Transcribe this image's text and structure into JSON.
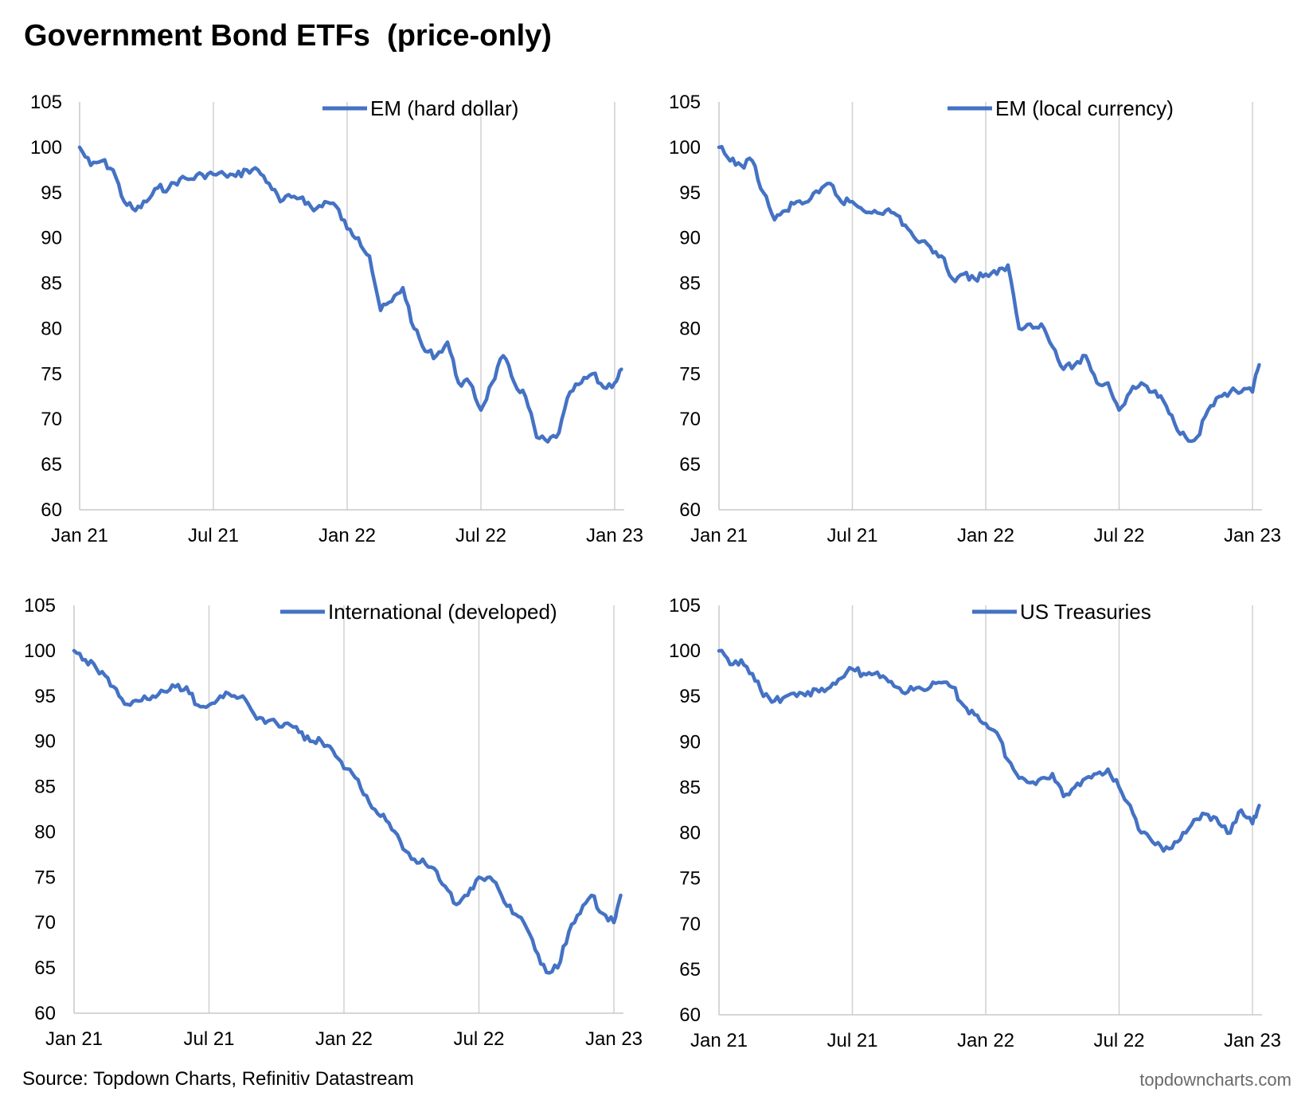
{
  "title": "Government Bond ETFs  (price-only)",
  "source": "Source: Topdown Charts, Refinitiv Datastream",
  "watermark": "topdowncharts.com",
  "colors": {
    "line": "#4472c4",
    "gridline": "#d0d0d0",
    "axis": "#c8c8c8"
  },
  "chart_data": [
    {
      "type": "line",
      "legend": "EM (hard dollar)",
      "legend_position": "top-right",
      "ylim": [
        60,
        105
      ],
      "yticks": [
        60,
        65,
        70,
        75,
        80,
        85,
        90,
        95,
        100,
        105
      ],
      "xticks": [
        "Jan 21",
        "Jul 21",
        "Jan 22",
        "Jul 22",
        "Jan 23"
      ],
      "grid": "vertical",
      "series": [
        {
          "x_months": [
            0,
            0.5,
            1,
            1.5,
            2,
            2.5,
            3,
            3.5,
            4,
            4.5,
            5,
            5.5,
            6,
            6.5,
            7,
            7.5,
            8,
            8.5,
            9,
            9.5,
            10,
            10.5,
            11,
            11.5,
            12,
            12.5,
            13,
            13.5,
            14,
            14.5,
            15,
            15.5,
            16,
            16.5,
            17,
            17.5,
            18,
            18.5,
            19,
            19.5,
            20,
            20.5,
            21,
            21.5,
            22,
            22.5,
            23,
            23.5,
            24,
            24.3
          ],
          "values": [
            100,
            98,
            98.5,
            97.5,
            94,
            93,
            94,
            95.5,
            95.5,
            96.5,
            96.5,
            97,
            97,
            97,
            96.8,
            97.5,
            97.5,
            96,
            94,
            94.5,
            94.5,
            93,
            94,
            93.5,
            91,
            90,
            88,
            82,
            83,
            84.5,
            80,
            77.5,
            77,
            78.5,
            74,
            74,
            71,
            74,
            77,
            74,
            72.5,
            68,
            67.5,
            68.5,
            73,
            74,
            75,
            73.5,
            74,
            75.5
          ]
        }
      ]
    },
    {
      "type": "line",
      "legend": "EM (local currency)",
      "legend_position": "top-right",
      "ylim": [
        60,
        105
      ],
      "yticks": [
        60,
        65,
        70,
        75,
        80,
        85,
        90,
        95,
        100,
        105
      ],
      "xticks": [
        "Jan 21",
        "Jul 21",
        "Jan 22",
        "Jul 22",
        "Jan 23"
      ],
      "grid": "vertical",
      "series": [
        {
          "x_months": [
            0,
            0.5,
            1,
            1.5,
            2,
            2.5,
            3,
            3.5,
            4,
            4.5,
            5,
            5.5,
            6,
            6.5,
            7,
            7.5,
            8,
            8.5,
            9,
            9.5,
            10,
            10.5,
            11,
            11.5,
            12,
            12.5,
            13,
            13.5,
            14,
            14.5,
            15,
            15.5,
            16,
            16.5,
            17,
            17.5,
            18,
            18.5,
            19,
            19.5,
            20,
            20.5,
            21,
            21.5,
            22,
            22.5,
            23,
            23.5,
            24,
            24.3
          ],
          "values": [
            100,
            98.5,
            98,
            98.5,
            95,
            92,
            93,
            94,
            94,
            95,
            96,
            94,
            94,
            93,
            93,
            93,
            92.5,
            91,
            89.5,
            89,
            88,
            85.5,
            86,
            85.5,
            86,
            86,
            87,
            80,
            80.5,
            80.5,
            78,
            75.5,
            76,
            77,
            74,
            74,
            71,
            73,
            74,
            73,
            72,
            69.5,
            68,
            68,
            71,
            72.5,
            73,
            73,
            73,
            76
          ]
        }
      ]
    },
    {
      "type": "line",
      "legend": "International (developed)",
      "legend_position": "top-right",
      "ylim": [
        60,
        105
      ],
      "yticks": [
        60,
        65,
        70,
        75,
        80,
        85,
        90,
        95,
        100,
        105
      ],
      "xticks": [
        "Jan 21",
        "Jul 21",
        "Jan 22",
        "Jul 22",
        "Jan 23"
      ],
      "grid": "vertical",
      "series": [
        {
          "x_months": [
            0,
            0.5,
            1,
            1.5,
            2,
            2.5,
            3,
            3.5,
            4,
            4.5,
            5,
            5.5,
            6,
            6.5,
            7,
            7.5,
            8,
            8.5,
            9,
            9.5,
            10,
            10.5,
            11,
            11.5,
            12,
            12.5,
            13,
            13.5,
            14,
            14.5,
            15,
            15.5,
            16,
            16.5,
            17,
            17.5,
            18,
            18.5,
            19,
            19.5,
            20,
            20.5,
            21,
            21.5,
            22,
            22.5,
            23,
            23.5,
            24,
            24.3
          ],
          "values": [
            100,
            99,
            98,
            97,
            95,
            94,
            94.5,
            95,
            95.5,
            96,
            96,
            94,
            94,
            95,
            95,
            95,
            93,
            92,
            92,
            92,
            91,
            90,
            90,
            89,
            87,
            86,
            84,
            82,
            81,
            79,
            77,
            77,
            76,
            74,
            72,
            73,
            75,
            75,
            73,
            71,
            70,
            67,
            64.5,
            65,
            69,
            71,
            73,
            71,
            70,
            73
          ]
        }
      ]
    },
    {
      "type": "line",
      "legend": "US Treasuries",
      "legend_position": "top-right",
      "ylim": [
        60,
        105
      ],
      "yticks": [
        60,
        65,
        70,
        75,
        80,
        85,
        90,
        95,
        100,
        105
      ],
      "xticks": [
        "Jan 21",
        "Jul 21",
        "Jan 22",
        "Jul 22",
        "Jan 23"
      ],
      "grid": "vertical",
      "series": [
        {
          "x_months": [
            0,
            0.5,
            1,
            1.5,
            2,
            2.5,
            3,
            3.5,
            4,
            4.5,
            5,
            5.5,
            6,
            6.5,
            7,
            7.5,
            8,
            8.5,
            9,
            9.5,
            10,
            10.5,
            11,
            11.5,
            12,
            12.5,
            13,
            13.5,
            14,
            14.5,
            15,
            15.5,
            16,
            16.5,
            17,
            17.5,
            18,
            18.5,
            19,
            19.5,
            20,
            20.5,
            21,
            21.5,
            22,
            22.5,
            23,
            23.5,
            24,
            24.3
          ],
          "values": [
            100,
            98.5,
            99,
            97.5,
            95,
            94.5,
            95,
            95,
            95.5,
            95.5,
            96,
            97,
            98,
            97.5,
            97.5,
            97,
            96,
            95.5,
            96,
            96,
            96.5,
            96,
            94,
            93,
            92,
            91,
            88,
            86,
            85.5,
            86,
            86.5,
            84,
            85,
            86,
            86.5,
            87,
            85,
            83,
            80,
            79,
            78,
            79,
            80,
            81.5,
            82,
            81,
            80,
            82.5,
            81,
            83
          ]
        }
      ]
    }
  ]
}
